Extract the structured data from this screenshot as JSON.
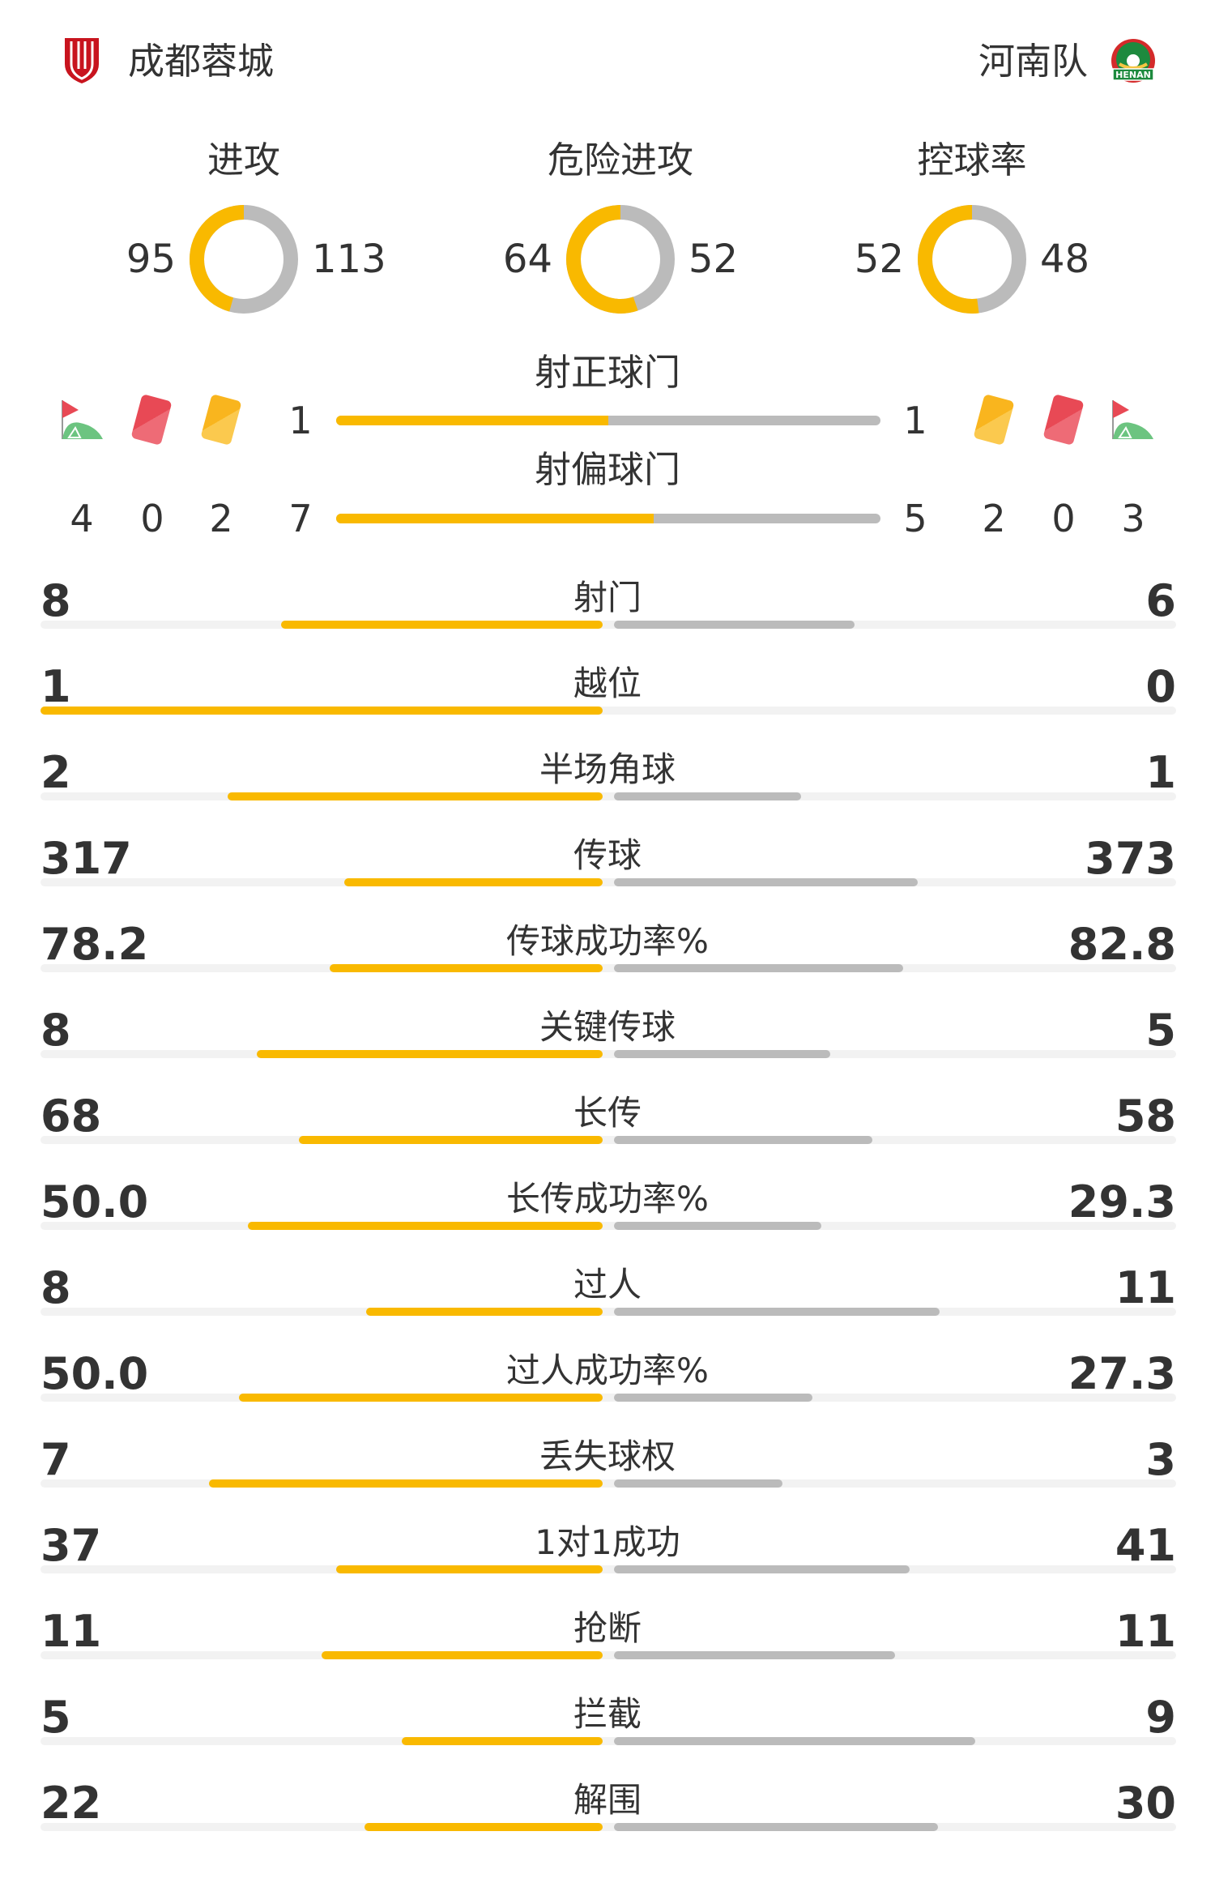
{
  "colors": {
    "home": "#f9b900",
    "away": "#bbbbbb",
    "track": "#f2f2f2"
  },
  "header": {
    "home_team": "成都蓉城",
    "away_team": "河南队",
    "home_logo": "chengdu-rongcheng-crest",
    "away_logo": "henan-crest",
    "away_logo_text": "HENAN"
  },
  "donuts": [
    {
      "title": "进攻",
      "home": 95,
      "away": 113
    },
    {
      "title": "危险进攻",
      "home": 64,
      "away": 52
    },
    {
      "title": "控球率",
      "home": 52,
      "away": 48
    }
  ],
  "shots_on_target": {
    "label": "射正球门",
    "home": 1,
    "away": 1
  },
  "shots_off_target": {
    "label": "射偏球门",
    "home": 7,
    "away": 5
  },
  "home_counts": {
    "corners": 4,
    "red_cards": 0,
    "yellow_cards": 2
  },
  "away_counts": {
    "yellow_cards": 2,
    "red_cards": 0,
    "corners": 3
  },
  "icons": {
    "corner": "corner-flag-icon",
    "red": "red-card-icon",
    "yellow": "yellow-card-icon"
  },
  "stats": [
    {
      "label": "射门",
      "home": "8",
      "away": "6"
    },
    {
      "label": "越位",
      "home": "1",
      "away": "0"
    },
    {
      "label": "半场角球",
      "home": "2",
      "away": "1"
    },
    {
      "label": "传球",
      "home": "317",
      "away": "373"
    },
    {
      "label": "传球成功率%",
      "home": "78.2",
      "away": "82.8"
    },
    {
      "label": "关键传球",
      "home": "8",
      "away": "5"
    },
    {
      "label": "长传",
      "home": "68",
      "away": "58"
    },
    {
      "label": "长传成功率%",
      "home": "50.0",
      "away": "29.3"
    },
    {
      "label": "过人",
      "home": "8",
      "away": "11"
    },
    {
      "label": "过人成功率%",
      "home": "50.0",
      "away": "27.3"
    },
    {
      "label": "丢失球权",
      "home": "7",
      "away": "3"
    },
    {
      "label": "1对1成功",
      "home": "37",
      "away": "41"
    },
    {
      "label": "抢断",
      "home": "11",
      "away": "11"
    },
    {
      "label": "拦截",
      "home": "5",
      "away": "9"
    },
    {
      "label": "解围",
      "home": "22",
      "away": "30"
    }
  ]
}
